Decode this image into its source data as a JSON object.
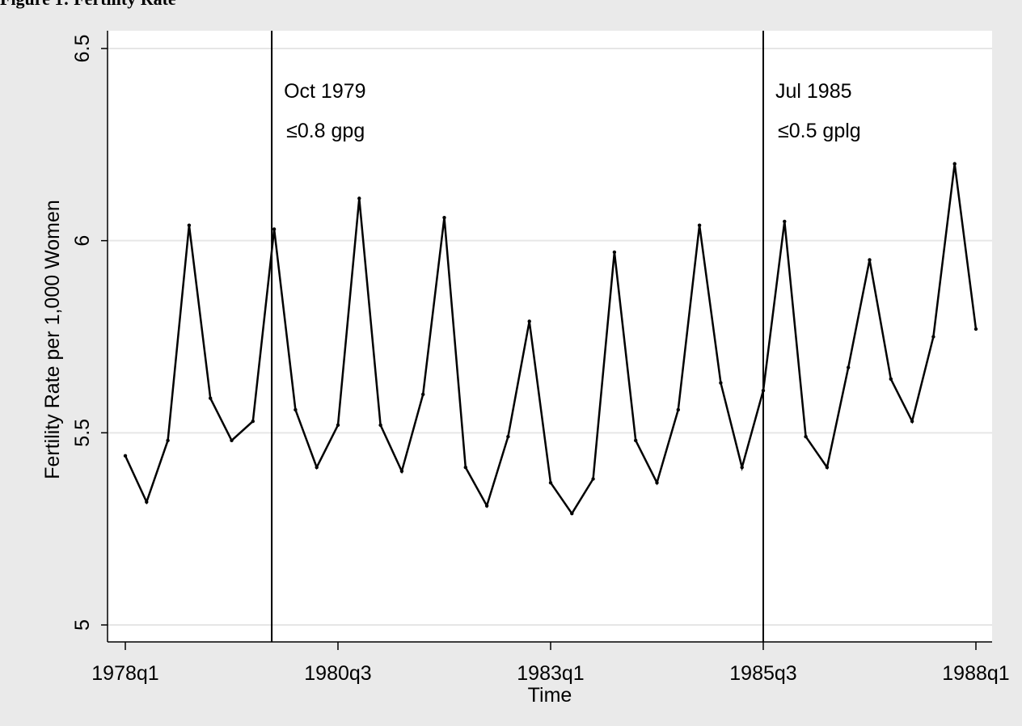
{
  "caption": "Figure 1: Fertility Rate",
  "colors": {
    "outer_background": "#eaeaea",
    "plot_background": "#ffffff",
    "gridline": "#e6e6e6",
    "line": "#000000"
  },
  "chart_data": {
    "type": "line",
    "title": "",
    "xlabel": "Time",
    "ylabel": "Fertility Rate per 1,000 Women",
    "ylim": [
      5,
      6.5
    ],
    "yticks": [
      5,
      5.5,
      6,
      6.5
    ],
    "ytick_labels": [
      "5",
      "5.5",
      "6",
      "6.5"
    ],
    "xticks": [
      "1978q1",
      "1980q3",
      "1983q1",
      "1985q3",
      "1988q1"
    ],
    "grid": true,
    "legend": "none",
    "x": [
      "1978q1",
      "1978q2",
      "1978q3",
      "1978q4",
      "1979q1",
      "1979q2",
      "1979q3",
      "1979q4",
      "1980q1",
      "1980q2",
      "1980q3",
      "1980q4",
      "1981q1",
      "1981q2",
      "1981q3",
      "1981q4",
      "1982q1",
      "1982q2",
      "1982q3",
      "1982q4",
      "1983q1",
      "1983q2",
      "1983q3",
      "1983q4",
      "1984q1",
      "1984q2",
      "1984q3",
      "1984q4",
      "1985q1",
      "1985q2",
      "1985q3",
      "1985q4",
      "1986q1",
      "1986q2",
      "1986q3",
      "1986q4",
      "1987q1",
      "1987q2",
      "1987q3",
      "1987q4",
      "1988q1"
    ],
    "values": [
      5.44,
      5.32,
      5.48,
      6.04,
      5.59,
      5.48,
      5.53,
      6.03,
      5.56,
      5.41,
      5.52,
      6.11,
      5.52,
      5.4,
      5.6,
      6.06,
      5.41,
      5.31,
      5.49,
      5.79,
      5.37,
      5.29,
      5.38,
      5.97,
      5.48,
      5.37,
      5.56,
      6.04,
      5.63,
      5.41,
      5.61,
      6.05,
      5.49,
      5.41,
      5.67,
      5.95,
      5.64,
      5.53,
      5.75,
      6.2,
      5.77
    ],
    "vlines": [
      {
        "x": "1979q4",
        "label_line1": "Oct 1979",
        "label_line2": "≤0.8 gpg"
      },
      {
        "x": "1985q3",
        "label_line1": "Jul 1985",
        "label_line2": "≤0.5 gplg"
      }
    ]
  }
}
